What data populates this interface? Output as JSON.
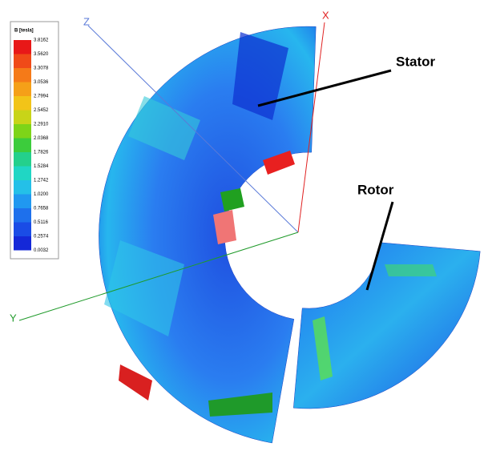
{
  "legend": {
    "title": "B [tesla]",
    "labels": [
      "3.8162",
      "3.5620",
      "3.3078",
      "3.0536",
      "2.7994",
      "2.5452",
      "2.2910",
      "2.0368",
      "1.7826",
      "1.5284",
      "1.2742",
      "1.0200",
      "0.7658",
      "0.5116",
      "0.2574",
      "0.0032"
    ]
  },
  "annotations": {
    "stator": "Stator",
    "rotor": "Rotor"
  },
  "axes": {
    "x": "X",
    "y": "Y",
    "z": "Z"
  }
}
